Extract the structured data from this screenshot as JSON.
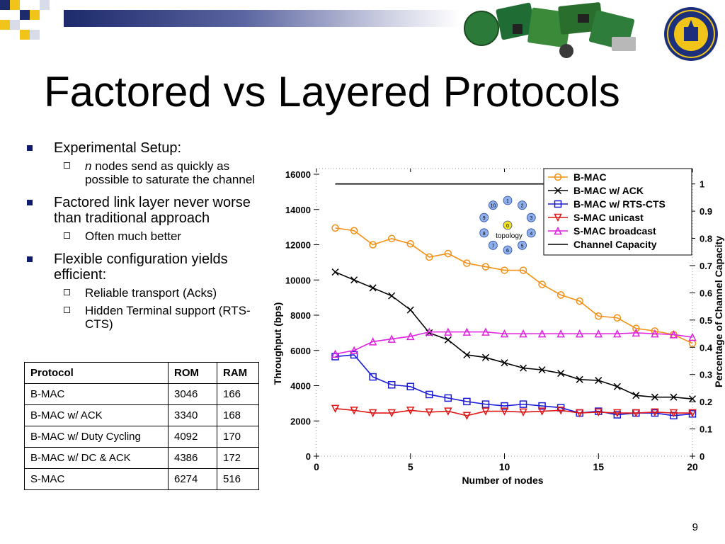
{
  "slide": {
    "title": "Factored vs Layered Protocols",
    "page_number": "9"
  },
  "bullets": [
    {
      "text": "Experimental Setup:",
      "sub": [
        {
          "prefix": "n",
          "text": " nodes send as quickly as possible to saturate the channel"
        }
      ]
    },
    {
      "text": "Factored link layer never worse than traditional approach",
      "sub": [
        {
          "prefix": "",
          "text": "Often much better"
        }
      ]
    },
    {
      "text": "Flexible configuration yields efficient:",
      "sub": [
        {
          "prefix": "",
          "text": "Reliable transport (Acks)"
        },
        {
          "prefix": "",
          "text": "Hidden Terminal support (RTS-CTS)"
        }
      ]
    }
  ],
  "table": {
    "headers": [
      "Protocol",
      "ROM",
      "RAM"
    ],
    "rows": [
      [
        "B-MAC",
        "3046",
        "166"
      ],
      [
        "B-MAC w/ ACK",
        "3340",
        "168"
      ],
      [
        "B-MAC w/ Duty Cycling",
        "4092",
        "170"
      ],
      [
        "B-MAC w/ DC & ACK",
        "4386",
        "172"
      ],
      [
        "S-MAC",
        "6274",
        "516"
      ]
    ]
  },
  "topology": {
    "label": "topology",
    "nodes": [
      "0",
      "1",
      "2",
      "3",
      "4",
      "5",
      "6",
      "7",
      "8",
      "9",
      "10"
    ]
  },
  "chart_data": {
    "type": "line",
    "xlabel": "Number of nodes",
    "ylabel": "Throughput (bps)",
    "ylabel_right": "Percentage of Channel Capacity",
    "xlim": [
      0,
      20
    ],
    "ylim": [
      0,
      16000
    ],
    "ylim_right": [
      0,
      1
    ],
    "xticks": [
      "0",
      "5",
      "10",
      "15",
      "20"
    ],
    "yticks": [
      "0",
      "2000",
      "4000",
      "6000",
      "8000",
      "10000",
      "12000",
      "14000",
      "16000"
    ],
    "yticks_right": [
      "0",
      "0.1",
      "0.2",
      "0.3",
      "0.4",
      "0.5",
      "0.6",
      "0.7",
      "0.8",
      "0.9",
      "1"
    ],
    "legend_position": "top-right",
    "x": [
      1,
      2,
      3,
      4,
      5,
      6,
      7,
      8,
      9,
      10,
      11,
      12,
      13,
      14,
      15,
      16,
      17,
      18,
      19,
      20
    ],
    "series": [
      {
        "name": "B-MAC",
        "color": "#f39015",
        "marker": "circle",
        "values": [
          12950,
          12800,
          12000,
          12350,
          12050,
          11300,
          11500,
          10950,
          10750,
          10550,
          10550,
          9750,
          9150,
          8800,
          7950,
          7850,
          7250,
          7100,
          6900,
          6400
        ]
      },
      {
        "name": "B-MAC w/ ACK",
        "color": "#000000",
        "marker": "x",
        "values": [
          10450,
          10000,
          9550,
          9100,
          8300,
          7000,
          6600,
          5750,
          5600,
          5300,
          5000,
          4900,
          4700,
          4350,
          4300,
          3950,
          3450,
          3350,
          3350,
          3250
        ]
      },
      {
        "name": "B-MAC w/ RTS-CTS",
        "color": "#1a1ad6",
        "marker": "square",
        "values": [
          5650,
          5750,
          4500,
          4050,
          3950,
          3500,
          3300,
          3100,
          2950,
          2850,
          2950,
          2850,
          2750,
          2450,
          2550,
          2350,
          2450,
          2450,
          2300,
          2400
        ]
      },
      {
        "name": "S-MAC unicast",
        "color": "#e01515",
        "marker": "triangle-down",
        "values": [
          2700,
          2600,
          2450,
          2450,
          2600,
          2500,
          2550,
          2300,
          2550,
          2550,
          2500,
          2550,
          2600,
          2450,
          2500,
          2450,
          2450,
          2500,
          2450,
          2450
        ]
      },
      {
        "name": "S-MAC broadcast",
        "color": "#e020e0",
        "marker": "triangle-up",
        "values": [
          5800,
          6000,
          6500,
          6650,
          6800,
          7050,
          7050,
          7050,
          7050,
          6950,
          6950,
          6950,
          6950,
          6950,
          6950,
          6950,
          7000,
          6950,
          6900,
          6750
        ]
      },
      {
        "name": "Channel Capacity",
        "color": "#000000",
        "marker": "none",
        "x": [
          1,
          20
        ],
        "values": [
          15450,
          15450
        ]
      }
    ]
  }
}
